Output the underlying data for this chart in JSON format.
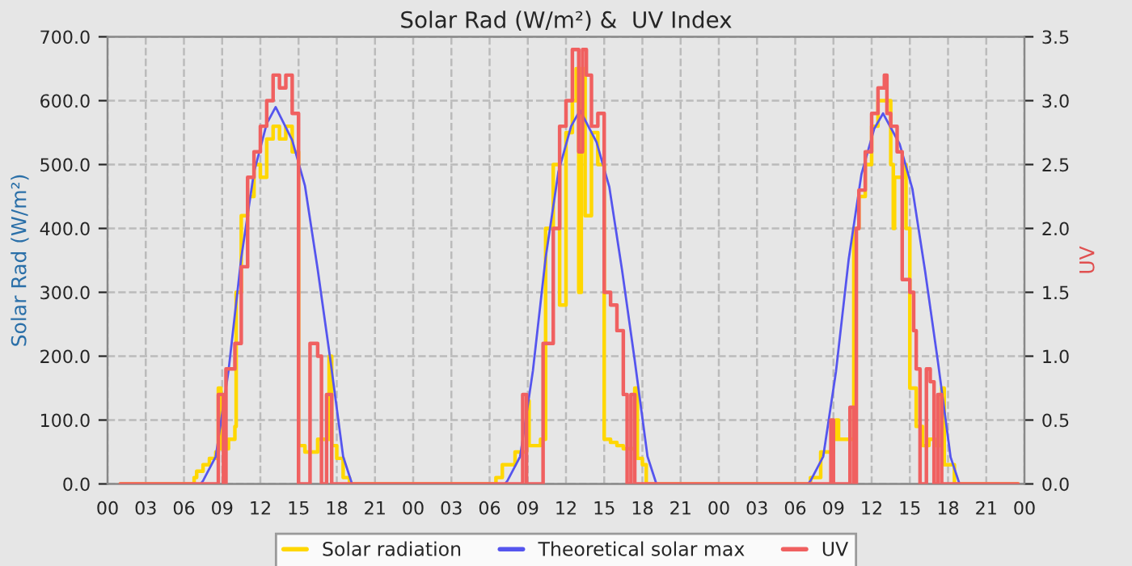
{
  "chart_data": {
    "type": "line",
    "title": "Solar Rad (W/m²) &  UV Index",
    "ylabel": "Solar Rad (W/m²)",
    "y2label": "UV",
    "xlim": [
      0,
      72
    ],
    "xticks": [
      {
        "value": 0,
        "label": "00"
      },
      {
        "value": 3,
        "label": "03"
      },
      {
        "value": 6,
        "label": "06"
      },
      {
        "value": 9,
        "label": "09"
      },
      {
        "value": 12,
        "label": "12"
      },
      {
        "value": 15,
        "label": "15"
      },
      {
        "value": 18,
        "label": "18"
      },
      {
        "value": 21,
        "label": "21"
      },
      {
        "value": 24,
        "label": "00"
      },
      {
        "value": 27,
        "label": "03"
      },
      {
        "value": 30,
        "label": "06"
      },
      {
        "value": 33,
        "label": "09"
      },
      {
        "value": 36,
        "label": "12"
      },
      {
        "value": 39,
        "label": "15"
      },
      {
        "value": 42,
        "label": "18"
      },
      {
        "value": 45,
        "label": "21"
      },
      {
        "value": 48,
        "label": "00"
      },
      {
        "value": 51,
        "label": "03"
      },
      {
        "value": 54,
        "label": "06"
      },
      {
        "value": 57,
        "label": "09"
      },
      {
        "value": 60,
        "label": "12"
      },
      {
        "value": 63,
        "label": "15"
      },
      {
        "value": 66,
        "label": "18"
      },
      {
        "value": 69,
        "label": "21"
      },
      {
        "value": 72,
        "label": "00"
      }
    ],
    "ylim": [
      0,
      700
    ],
    "yticks": [
      {
        "value": 0,
        "label": "0.0"
      },
      {
        "value": 100,
        "label": "100.0"
      },
      {
        "value": 200,
        "label": "200.0"
      },
      {
        "value": 300,
        "label": "300.0"
      },
      {
        "value": 400,
        "label": "400.0"
      },
      {
        "value": 500,
        "label": "500.0"
      },
      {
        "value": 600,
        "label": "600.0"
      },
      {
        "value": 700,
        "label": "700.0"
      }
    ],
    "y2lim": [
      0,
      3.5
    ],
    "y2ticks": [
      {
        "value": 0,
        "label": "0.0"
      },
      {
        "value": 0.5,
        "label": "0.5"
      },
      {
        "value": 1,
        "label": "1.0"
      },
      {
        "value": 1.5,
        "label": "1.5"
      },
      {
        "value": 2,
        "label": "2.0"
      },
      {
        "value": 2.5,
        "label": "2.5"
      },
      {
        "value": 3,
        "label": "3.0"
      },
      {
        "value": 3.5,
        "label": "3.5"
      }
    ],
    "grid": true,
    "legend": "bottom",
    "series": [
      {
        "name": "Solar radiation",
        "type": "step",
        "color": "#ffd700",
        "x": [
          1,
          6.8,
          7,
          7.5,
          8,
          8.5,
          8.7,
          8.9,
          9.5,
          10,
          10.1,
          10.5,
          11,
          11.5,
          12,
          12.5,
          13,
          13.5,
          14,
          14.5,
          15,
          15.5,
          16,
          16.5,
          17.4,
          17.6,
          18,
          18.5,
          19,
          30.5,
          31,
          32,
          32.9,
          33.1,
          34,
          34.4,
          35,
          35.5,
          36,
          36.5,
          36.8,
          37,
          37.2,
          37.5,
          38,
          38.5,
          39,
          39.5,
          40,
          40.5,
          41.4,
          41.6,
          42,
          42.3,
          55.2,
          56,
          57,
          57.2,
          57.4,
          58.6,
          59,
          59.5,
          60,
          60.5,
          61,
          61.5,
          61.7,
          61.8,
          62.5,
          62.7,
          63,
          63.5,
          64,
          64.5,
          65,
          65.5,
          65.7,
          66,
          66.5,
          71.5
        ],
        "values": [
          0,
          10,
          20,
          30,
          40,
          50,
          150,
          55,
          70,
          90,
          300,
          420,
          450,
          500,
          480,
          540,
          560,
          540,
          560,
          520,
          60,
          50,
          50,
          70,
          200,
          60,
          40,
          10,
          0,
          10,
          30,
          50,
          130,
          60,
          70,
          400,
          500,
          280,
          550,
          600,
          650,
          300,
          650,
          420,
          550,
          500,
          70,
          65,
          60,
          55,
          150,
          40,
          30,
          0,
          10,
          50,
          70,
          100,
          70,
          400,
          450,
          500,
          560,
          600,
          600,
          500,
          400,
          480,
          500,
          400,
          150,
          90,
          60,
          70,
          60,
          150,
          30,
          30,
          0,
          0
        ]
      },
      {
        "name": "Theoretical solar max",
        "type": "line",
        "color": "#5555ee",
        "x": [
          1,
          7.3,
          7.5,
          8.5,
          9.5,
          10.5,
          11.5,
          12.5,
          13.2,
          14.5,
          15.5,
          16.5,
          17.5,
          18.5,
          19.2,
          31.2,
          31.4,
          32.4,
          33.4,
          34.4,
          35.4,
          36.4,
          37.1,
          38.4,
          39.4,
          40.4,
          41.4,
          42.4,
          43.1,
          55.0,
          55.2,
          56.2,
          57.2,
          58.2,
          59.2,
          60.2,
          60.9,
          62.2,
          63.2,
          64.2,
          65.2,
          66.2,
          66.9,
          71.5
        ],
        "values": [
          0,
          0,
          5,
          43,
          177,
          354,
          488,
          564,
          590,
          538,
          467,
          336,
          194,
          43,
          0,
          0,
          5,
          43,
          177,
          354,
          488,
          560,
          585,
          535,
          465,
          335,
          193,
          43,
          0,
          0,
          5,
          43,
          176,
          352,
          485,
          556,
          580,
          532,
          462,
          333,
          192,
          42,
          0,
          0
        ]
      },
      {
        "name": "UV",
        "type": "step",
        "axis": "y2",
        "color": "#f06060",
        "x": [
          1,
          8.7,
          9.1,
          9.3,
          10,
          10.5,
          11,
          11.5,
          12,
          12.5,
          13,
          13.5,
          14,
          14.5,
          15,
          15.9,
          16.5,
          16.8,
          17.2,
          17.6,
          32.6,
          32.9,
          34.2,
          35,
          35.5,
          36,
          36.5,
          37,
          37.3,
          37.6,
          38,
          38.5,
          39,
          39.5,
          40,
          40.5,
          40.8,
          41.1,
          41.4,
          56.8,
          57,
          58.3,
          58.6,
          58.8,
          59,
          59.5,
          60,
          60.5,
          61,
          61.2,
          61.5,
          62,
          62.4,
          63,
          63.3,
          63.5,
          63.8,
          64.3,
          64.6,
          64.9,
          65.2,
          65.5,
          71.5
        ],
        "values": [
          0,
          0.7,
          0,
          0.9,
          1.1,
          1.7,
          2.4,
          2.6,
          2.8,
          3.0,
          3.2,
          3.1,
          3.2,
          2.9,
          0,
          1.1,
          1.0,
          0,
          0.7,
          0,
          0.7,
          0,
          1.1,
          2.0,
          2.8,
          3.0,
          3.4,
          2.6,
          3.4,
          3.2,
          2.8,
          2.9,
          1.5,
          1.4,
          1.2,
          0.7,
          0,
          0.7,
          0,
          0.5,
          0,
          0.6,
          0,
          2.0,
          2.3,
          2.6,
          2.9,
          3.1,
          3.2,
          2.9,
          2.8,
          2.6,
          1.6,
          1.5,
          1.2,
          0.9,
          0,
          0.9,
          0.8,
          0,
          0.7,
          0,
          0
        ]
      }
    ]
  }
}
